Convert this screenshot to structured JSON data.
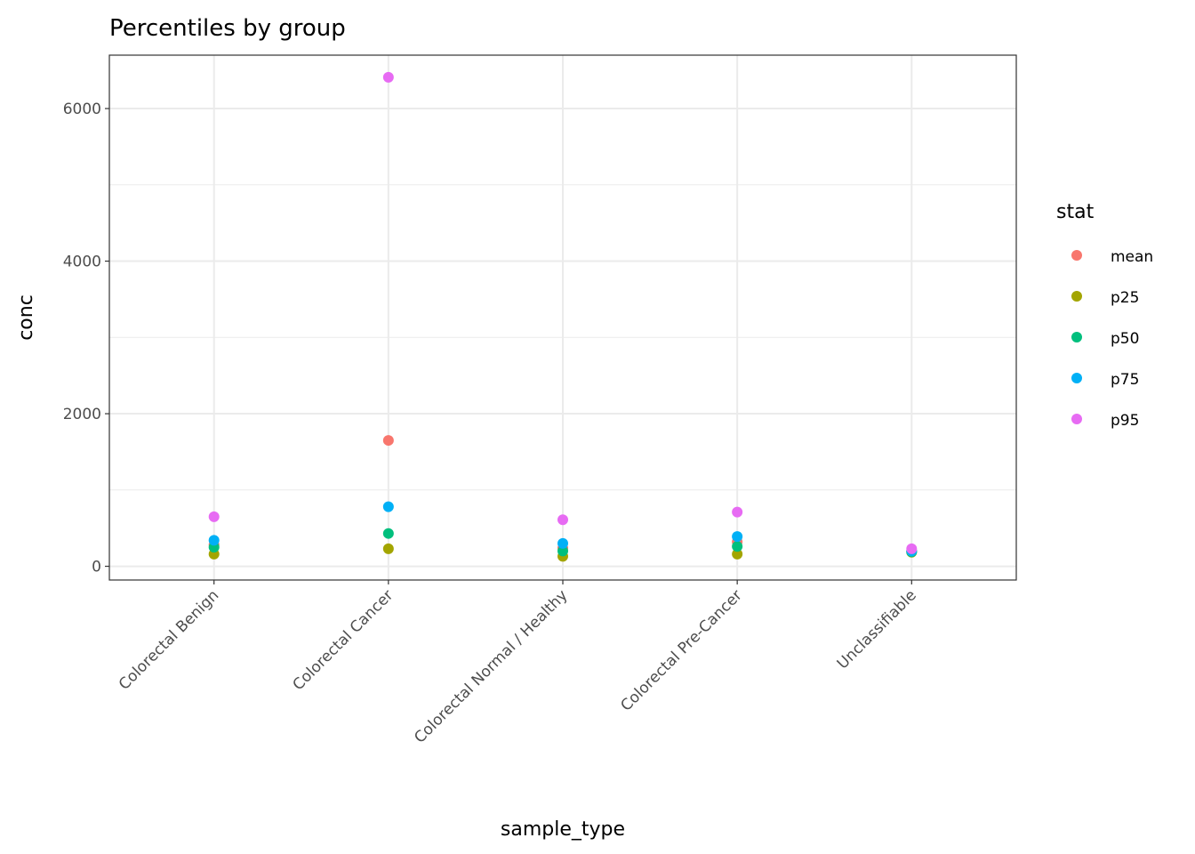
{
  "chart_data": {
    "type": "scatter",
    "title": "Percentiles by group",
    "xlabel": "sample_type",
    "ylabel": "conc",
    "categories": [
      "Colorectal Benign",
      "Colorectal Cancer",
      "Colorectal Normal / Healthy",
      "Colorectal Pre-Cancer",
      "Unclassifiable"
    ],
    "ylim": [
      -180,
      6700
    ],
    "yticks": [
      0,
      2000,
      4000,
      6000
    ],
    "grid": true,
    "legend": {
      "title": "stat",
      "position": "right"
    },
    "series": [
      {
        "name": "mean",
        "color": "#F8766D",
        "values": [
          280,
          1650,
          240,
          320,
          200
        ]
      },
      {
        "name": "p25",
        "color": "#A3A500",
        "values": [
          160,
          230,
          130,
          160,
          185
        ]
      },
      {
        "name": "p50",
        "color": "#00BF7D",
        "values": [
          250,
          430,
          200,
          260,
          190
        ]
      },
      {
        "name": "p75",
        "color": "#00B0F6",
        "values": [
          340,
          780,
          300,
          390,
          200
        ]
      },
      {
        "name": "p95",
        "color": "#E76BF3",
        "values": [
          650,
          6410,
          610,
          710,
          230
        ]
      }
    ]
  }
}
